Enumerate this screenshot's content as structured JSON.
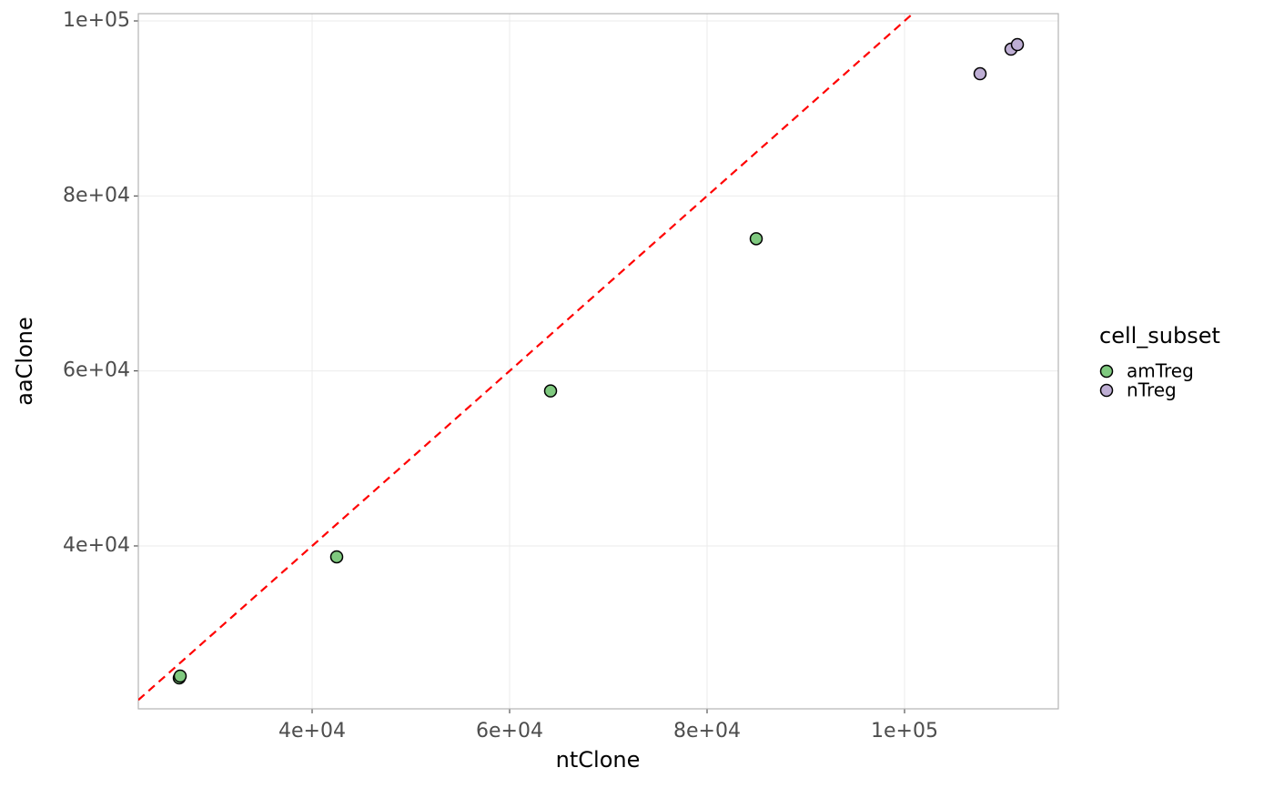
{
  "chart_data": {
    "type": "scatter",
    "x_label": "ntClone",
    "y_label": "aaClone",
    "legend_title": "cell_subset",
    "legend_position": "right",
    "series": [
      {
        "name": "amTreg",
        "color": "#7fc97f",
        "x": [
          26544,
          26636,
          42488,
          64147,
          84977
        ],
        "values": [
          24919,
          25127,
          38752,
          57712,
          75112
        ]
      },
      {
        "name": "nTreg",
        "color": "#beaed4",
        "x": [
          107650,
          110783,
          111429
        ],
        "values": [
          93968,
          96776,
          97296
        ]
      }
    ],
    "reference_line": {
      "slope": 1,
      "intercept": 0,
      "color": "#ff0000",
      "dashed": true
    },
    "xlim": [
      22396,
      115576
    ],
    "ylim": [
      21383,
      100832
    ],
    "xticks": [
      {
        "value": 40000,
        "label": "4e+04"
      },
      {
        "value": 60000,
        "label": "6e+04"
      },
      {
        "value": 80000,
        "label": "8e+04"
      },
      {
        "value": 100000,
        "label": "1e+05"
      }
    ],
    "yticks": [
      {
        "value": 40000,
        "label": "4e+04"
      },
      {
        "value": 60000,
        "label": "6e+04"
      },
      {
        "value": 80000,
        "label": "8e+04"
      },
      {
        "value": 100000,
        "label": "1e+05"
      }
    ],
    "grid": true
  }
}
